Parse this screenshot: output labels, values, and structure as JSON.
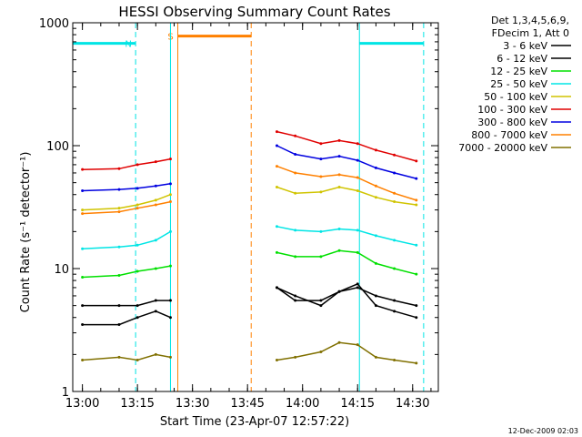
{
  "chart_data": {
    "type": "line",
    "title": "HESSI Observing Summary Count Rates",
    "xlabel": "Start Time (23-Apr-07 12:57:22)",
    "ylabel": "Count Rate (s⁻¹ detector⁻¹)",
    "y_scale": "log",
    "ylim": [
      1,
      1000
    ],
    "xlim": [
      "12:57:22",
      "14:37:00"
    ],
    "x_ticks": [
      "13:00",
      "13:15",
      "13:30",
      "13:45",
      "14:00",
      "14:15",
      "14:30"
    ],
    "y_ticks": [
      "1",
      "10",
      "100",
      "1000"
    ],
    "grid": false,
    "legend_header": [
      "Det 1,3,4,5,6,9,",
      "FDecim 1, Att 0"
    ],
    "legend_position": "right",
    "footer_timestamp": "12-Dec-2009 02:03",
    "series": [
      {
        "name": "3 - 6 keV",
        "color": "#000000",
        "x": [
          "13:00",
          "13:10",
          "13:15",
          "13:20",
          "13:24",
          "13:49",
          "13:53",
          "13:58",
          "14:05",
          "14:10",
          "14:15",
          "14:20",
          "14:25",
          "14:31"
        ],
        "y": [
          3.5,
          3.5,
          4.0,
          4.5,
          4.0,
          null,
          7.0,
          6.0,
          5.0,
          6.5,
          7.5,
          5.0,
          4.5,
          4.0
        ]
      },
      {
        "name": "6 - 12 keV",
        "color": "#000000",
        "x": [
          "13:00",
          "13:10",
          "13:15",
          "13:20",
          "13:24",
          "13:49",
          "13:53",
          "13:58",
          "14:05",
          "14:10",
          "14:15",
          "14:20",
          "14:25",
          "14:31"
        ],
        "y": [
          5.0,
          5.0,
          5.0,
          5.5,
          5.5,
          null,
          7.0,
          5.5,
          5.5,
          6.5,
          7.0,
          6.0,
          5.5,
          5.0
        ]
      },
      {
        "name": "12 - 25 keV",
        "color": "#00e000",
        "x": [
          "13:00",
          "13:10",
          "13:15",
          "13:20",
          "13:24",
          "13:49",
          "13:53",
          "13:58",
          "14:05",
          "14:10",
          "14:15",
          "14:20",
          "14:25",
          "14:31"
        ],
        "y": [
          8.5,
          8.8,
          9.5,
          10.0,
          10.5,
          null,
          13.5,
          12.5,
          12.5,
          14.0,
          13.5,
          11.0,
          10.0,
          9.0
        ]
      },
      {
        "name": "25 - 50 keV",
        "color": "#00e5e5",
        "x": [
          "13:00",
          "13:10",
          "13:15",
          "13:20",
          "13:24",
          "13:49",
          "13:53",
          "13:58",
          "14:05",
          "14:10",
          "14:15",
          "14:20",
          "14:25",
          "14:31"
        ],
        "y": [
          14.5,
          15.0,
          15.5,
          17.0,
          20.0,
          null,
          22.0,
          20.5,
          20.0,
          21.0,
          20.5,
          18.5,
          17.0,
          15.5
        ]
      },
      {
        "name": "50 - 100 keV",
        "color": "#d0c400",
        "x": [
          "13:00",
          "13:10",
          "13:15",
          "13:20",
          "13:24",
          "13:49",
          "13:53",
          "13:58",
          "14:05",
          "14:10",
          "14:15",
          "14:20",
          "14:25",
          "14:31"
        ],
        "y": [
          30,
          31,
          33,
          36,
          40,
          null,
          46,
          41,
          42,
          46,
          43,
          38,
          35,
          33
        ]
      },
      {
        "name": "100 - 300 keV",
        "color": "#e00000",
        "x": [
          "13:00",
          "13:10",
          "13:15",
          "13:20",
          "13:24",
          "13:49",
          "13:53",
          "13:58",
          "14:05",
          "14:10",
          "14:15",
          "14:20",
          "14:25",
          "14:31"
        ],
        "y": [
          64,
          65,
          70,
          74,
          78,
          null,
          130,
          120,
          104,
          110,
          104,
          92,
          84,
          75
        ]
      },
      {
        "name": "300 - 800 keV",
        "color": "#0000e0",
        "x": [
          "13:00",
          "13:10",
          "13:15",
          "13:20",
          "13:24",
          "13:49",
          "13:53",
          "13:58",
          "14:05",
          "14:10",
          "14:15",
          "14:20",
          "14:25",
          "14:31"
        ],
        "y": [
          43,
          44,
          45,
          47,
          49,
          null,
          100,
          85,
          78,
          82,
          76,
          66,
          60,
          54
        ]
      },
      {
        "name": "800 - 7000 keV",
        "color": "#ff8000",
        "x": [
          "13:00",
          "13:10",
          "13:15",
          "13:20",
          "13:24",
          "13:49",
          "13:53",
          "13:58",
          "14:05",
          "14:10",
          "14:15",
          "14:20",
          "14:25",
          "14:31"
        ],
        "y": [
          28,
          29,
          31,
          33,
          35,
          null,
          68,
          60,
          56,
          58,
          55,
          47,
          41,
          36
        ]
      },
      {
        "name": "7000 - 20000 keV",
        "color": "#807000",
        "x": [
          "13:00",
          "13:10",
          "13:15",
          "13:20",
          "13:24",
          "13:49",
          "13:53",
          "13:58",
          "14:05",
          "14:10",
          "14:15",
          "14:20",
          "14:25",
          "14:31"
        ],
        "y": [
          1.8,
          1.9,
          1.8,
          2.0,
          1.9,
          null,
          1.8,
          1.9,
          2.1,
          2.5,
          2.4,
          1.9,
          1.8,
          1.7
        ]
      }
    ],
    "annotations": [
      {
        "label": "N",
        "color": "#00e5e5",
        "bar": [
          "12:57:22",
          "13:14:30"
        ],
        "bar_value": 680,
        "marker_style": "dashed",
        "marker_x": "13:14:30"
      },
      {
        "label": "S",
        "color": "#ff8000",
        "bar": [
          "13:26:00",
          "13:46:00"
        ],
        "bar_value": 780,
        "marker_style": "solid",
        "marker_x": "13:26:00"
      },
      {
        "label": "",
        "color": "#ff8000",
        "bar": null,
        "marker_style": "dashed",
        "marker_x": "13:46:00"
      },
      {
        "label": "",
        "color": "#00e5e5",
        "bar": [
          "14:15:30",
          "14:33:00"
        ],
        "bar_value": 680,
        "marker_style": "solid",
        "marker_x": "14:15:30"
      },
      {
        "label": "",
        "color": "#00e5e5",
        "bar": null,
        "marker_style": "dashed",
        "marker_x": "14:33:00"
      },
      {
        "label": "",
        "color": "#00e5e5",
        "bar": null,
        "marker_style": "solid",
        "marker_x": "13:24:00"
      }
    ]
  }
}
